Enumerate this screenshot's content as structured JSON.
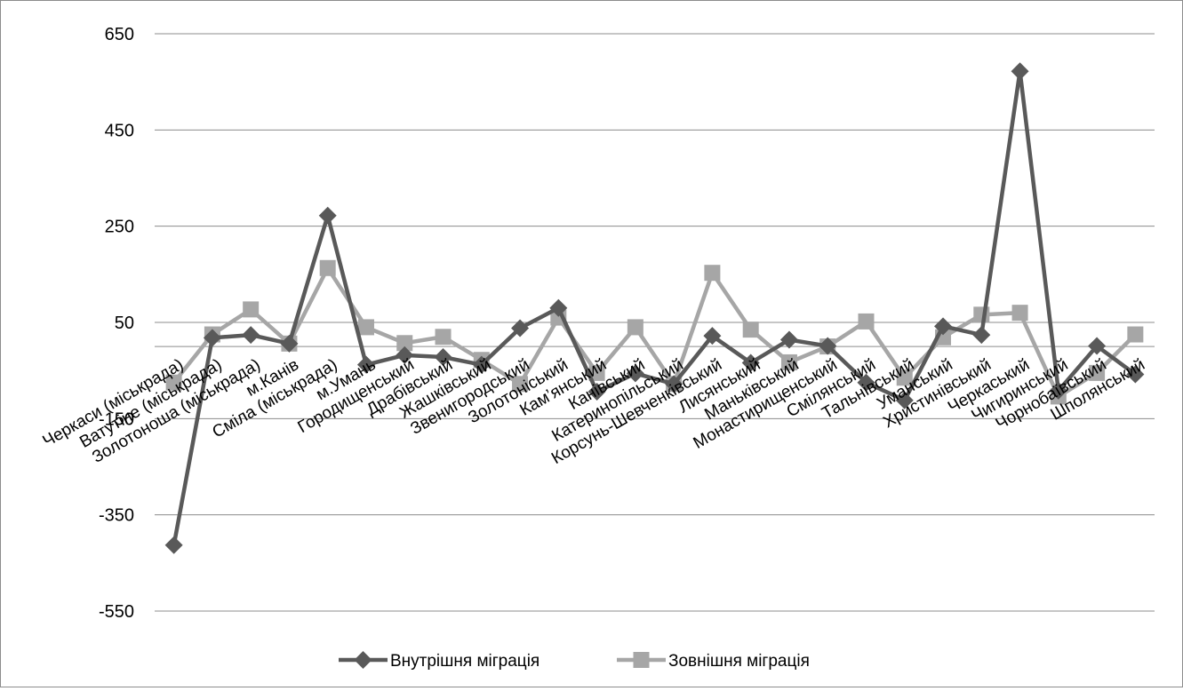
{
  "chart_data": {
    "type": "line",
    "ylim": [
      -550,
      650
    ],
    "yticks": [
      -550,
      -350,
      -150,
      50,
      250,
      450,
      650
    ],
    "grid": "horizontal",
    "legend_position": "bottom",
    "categories": [
      "Черкаси (міськрада)",
      "Ватутіне (міськрада)",
      "Золотоноша (міськрада)",
      "м.Канів",
      "Сміла (міськрада)",
      "м.Умань",
      "Городищенський",
      "Драбівський",
      "Жашківський",
      "Звенигородський",
      "Золотоніський",
      "Кам’янський",
      "Канівський",
      "Катеринопільський",
      "Корсунь-Шевченківський",
      "Лисянський",
      "Маньківський",
      "Монастирищенський",
      "Смілянський",
      "Тальнівський",
      "Уманський",
      "Христинівський",
      "Черкаський",
      "Чигиринський",
      "Чорнобаївський",
      "Шполянський"
    ],
    "series": [
      {
        "name": "Внутрішня міграція",
        "color": "#595959",
        "marker": "diamond",
        "values": [
          -413,
          18,
          24,
          6,
          272,
          -38,
          -18,
          -22,
          -38,
          38,
          80,
          -94,
          -56,
          -78,
          22,
          -34,
          14,
          1,
          -75,
          -112,
          42,
          24,
          572,
          -92,
          1,
          -58
        ]
      },
      {
        "name": "Зовнішня міграція",
        "color": "#a6a6a6",
        "marker": "square",
        "values": [
          -75,
          25,
          77,
          6,
          163,
          40,
          7,
          20,
          -28,
          -78,
          60,
          -55,
          40,
          -78,
          153,
          35,
          -33,
          0,
          52,
          -65,
          19,
          66,
          70,
          -104,
          -55,
          25
        ]
      }
    ]
  }
}
